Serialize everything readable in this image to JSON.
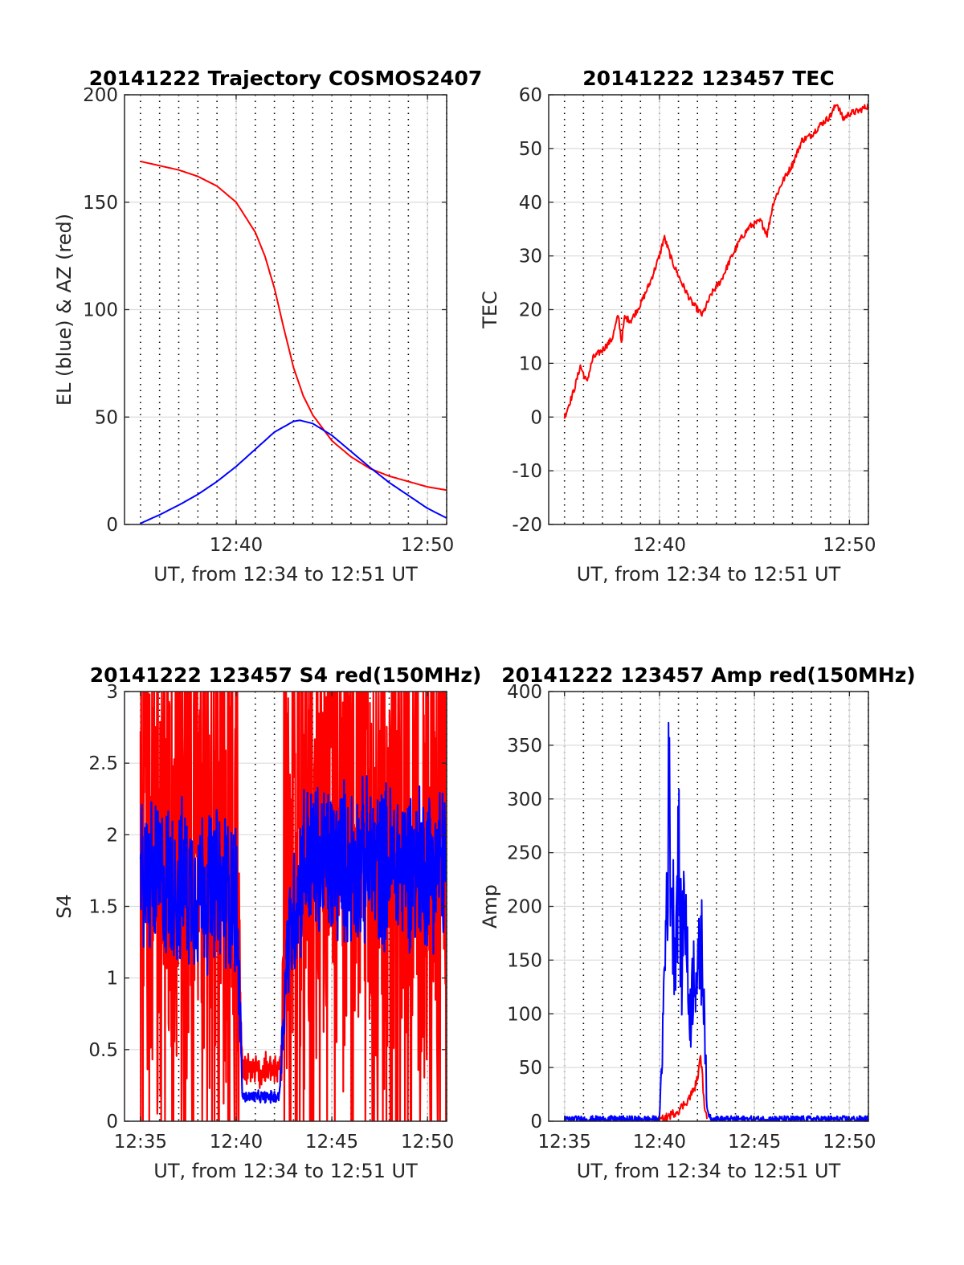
{
  "chart_data": [
    {
      "id": "trajectory",
      "type": "line",
      "title": "20141222 Trajectory COSMOS2407",
      "xlabel": "UT, from 12:34 to 12:51 UT",
      "ylabel": "EL (blue) & AZ (red)",
      "xlim": [
        "12:34:10",
        "12:51:00"
      ],
      "ylim": [
        0,
        200
      ],
      "x_ticks": [
        "12:40",
        "12:50"
      ],
      "y_ticks": [
        0,
        50,
        100,
        150,
        200
      ],
      "grid": true,
      "series": [
        {
          "color": "#ff0000",
          "x": [
            "12:35:00",
            "12:36:00",
            "12:37:00",
            "12:38:00",
            "12:39:00",
            "12:40:00",
            "12:41:00",
            "12:41:30",
            "12:42:00",
            "12:42:30",
            "12:43:00",
            "12:43:30",
            "12:44:00",
            "12:45:00",
            "12:46:00",
            "12:47:00",
            "12:48:00",
            "12:49:00",
            "12:50:00",
            "12:51:00"
          ],
          "values": [
            169,
            167,
            165,
            162,
            157.5,
            150,
            136,
            125,
            110,
            91,
            73,
            60,
            51,
            39,
            31.5,
            26,
            22.5,
            20,
            17.5,
            16
          ]
        },
        {
          "color": "#0000ff",
          "x": [
            "12:35:00",
            "12:36:00",
            "12:37:00",
            "12:38:00",
            "12:39:00",
            "12:40:00",
            "12:41:00",
            "12:42:00",
            "12:43:00",
            "12:43:20",
            "12:44:00",
            "12:45:00",
            "12:46:00",
            "12:47:00",
            "12:48:00",
            "12:49:00",
            "12:50:00",
            "12:51:00"
          ],
          "values": [
            0.5,
            4.5,
            9,
            14,
            20,
            27,
            35,
            43,
            48,
            48.5,
            47,
            41.5,
            34,
            26.5,
            19.5,
            13.5,
            7.5,
            3
          ]
        }
      ]
    },
    {
      "id": "tec",
      "type": "line",
      "title": "20141222 123457 TEC",
      "xlabel": "UT, from 12:34 to 12:51 UT",
      "ylabel": "TEC",
      "xlim": [
        "12:34:10",
        "12:51:00"
      ],
      "ylim": [
        -20,
        60
      ],
      "x_ticks": [
        "12:40",
        "12:50"
      ],
      "y_ticks": [
        -20,
        -10,
        0,
        10,
        20,
        30,
        40,
        50,
        60
      ],
      "grid": true,
      "series": [
        {
          "color": "#ff0000",
          "x": [
            "12:35:00",
            "12:35:30",
            "12:35:50",
            "12:36:10",
            "12:36:30",
            "12:37:00",
            "12:37:30",
            "12:37:50",
            "12:38:00",
            "12:38:10",
            "12:38:30",
            "12:39:00",
            "12:39:30",
            "12:40:00",
            "12:40:15",
            "12:40:40",
            "12:41:10",
            "12:41:40",
            "12:42:15",
            "12:42:45",
            "12:43:15",
            "12:43:45",
            "12:44:15",
            "12:44:45",
            "12:45:20",
            "12:45:40",
            "12:46:00",
            "12:46:30",
            "12:47:00",
            "12:47:30",
            "12:48:00",
            "12:48:30",
            "12:49:00",
            "12:49:20",
            "12:49:40",
            "12:50:00",
            "12:50:30",
            "12:51:00"
          ],
          "values": [
            0,
            5,
            9.5,
            6.5,
            11,
            12.5,
            14.5,
            19,
            14,
            18.5,
            18,
            21,
            25,
            30,
            33.5,
            29,
            25,
            21.5,
            19,
            23,
            25.5,
            29.5,
            33,
            35.5,
            36.5,
            34,
            40,
            44,
            47,
            51.5,
            52.5,
            54.5,
            56,
            58.5,
            55.5,
            56.5,
            57,
            58
          ]
        }
      ]
    },
    {
      "id": "s4",
      "type": "line",
      "title": "20141222 123457 S4 red(150MHz)",
      "xlabel": "UT, from 12:34 to 12:51 UT",
      "ylabel": "S4",
      "xlim": [
        "12:34:10",
        "12:51:00"
      ],
      "ylim": [
        0,
        3
      ],
      "x_ticks": [
        "12:35",
        "12:40",
        "12:45",
        "12:50"
      ],
      "y_ticks": [
        0,
        0.5,
        1,
        1.5,
        2,
        2.5,
        3
      ],
      "grid": true,
      "series": [
        {
          "color": "#ff0000",
          "style": "noisy",
          "x": [
            "12:35:00",
            "12:40:00",
            "12:40:20",
            "12:42:15",
            "12:42:40",
            "12:51:00"
          ],
          "values": [
            1.9,
            1.9,
            0.35,
            0.35,
            1.9,
            1.9
          ],
          "noise_amplitude": [
            1.6,
            1.6,
            0.12,
            0.12,
            1.6,
            1.6
          ]
        },
        {
          "color": "#0000ff",
          "style": "noisy",
          "x": [
            "12:35:00",
            "12:40:00",
            "12:40:20",
            "12:42:15",
            "12:42:40",
            "12:43:30",
            "12:51:00"
          ],
          "values": [
            1.7,
            1.6,
            0.17,
            0.17,
            1.2,
            1.8,
            1.8
          ],
          "noise_amplitude": [
            0.55,
            0.55,
            0.04,
            0.04,
            0.4,
            0.55,
            0.55
          ]
        }
      ]
    },
    {
      "id": "amp",
      "type": "line",
      "title": "20141222 123457 Amp red(150MHz)",
      "xlabel": "UT, from 12:34 to 12:51 UT",
      "ylabel": "Amp",
      "xlim": [
        "12:34:10",
        "12:51:00"
      ],
      "ylim": [
        0,
        400
      ],
      "x_ticks": [
        "12:35",
        "12:40",
        "12:45",
        "12:50"
      ],
      "y_ticks": [
        0,
        50,
        100,
        150,
        200,
        250,
        300,
        350,
        400
      ],
      "grid": true,
      "series": [
        {
          "color": "#0000ff",
          "x": [
            "12:35:00",
            "12:40:00",
            "12:40:10",
            "12:40:20",
            "12:40:30",
            "12:40:40",
            "12:40:50",
            "12:41:00",
            "12:41:10",
            "12:41:20",
            "12:41:30",
            "12:41:40",
            "12:41:50",
            "12:42:00",
            "12:42:10",
            "12:42:20",
            "12:42:30",
            "12:42:45",
            "12:51:00"
          ],
          "values": [
            2,
            2,
            80,
            180,
            300,
            200,
            170,
            250,
            140,
            230,
            120,
            100,
            160,
            120,
            170,
            130,
            10,
            2,
            2
          ],
          "noise_amplitude": 3
        },
        {
          "color": "#ff0000",
          "x": [
            "12:40:00",
            "12:40:30",
            "12:41:00",
            "12:41:30",
            "12:41:50",
            "12:42:00",
            "12:42:10",
            "12:42:15",
            "12:42:20",
            "12:42:30"
          ],
          "values": [
            0,
            5,
            10,
            20,
            30,
            40,
            60,
            45,
            20,
            0
          ]
        }
      ]
    }
  ]
}
